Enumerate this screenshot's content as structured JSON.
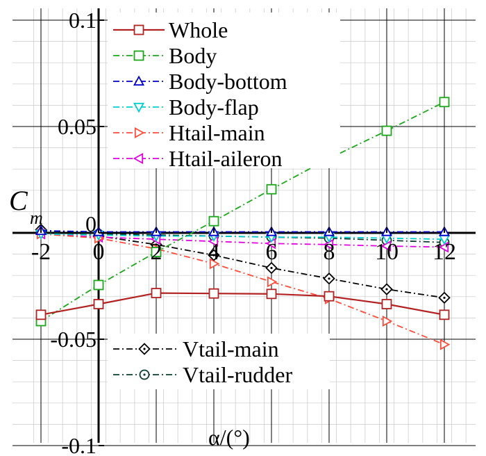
{
  "chart_data": {
    "type": "line",
    "title": "",
    "xlabel": "α/(°)",
    "ylabel": "C",
    "ylabel_subscript": "m",
    "xlim": [
      -2.25,
      13
    ],
    "ylim": [
      -0.1,
      0.1
    ],
    "x_ticks": [
      -2,
      0,
      2,
      4,
      6,
      8,
      10,
      12
    ],
    "x_tick_labels": [
      "-2",
      "0",
      "2",
      "4",
      "6",
      "8",
      "10",
      "12"
    ],
    "y_ticks": [
      -0.1,
      -0.05,
      0,
      0.05,
      0.1
    ],
    "y_tick_labels": [
      "-0.1",
      "-0.05",
      "0",
      "0.05",
      "0.1"
    ],
    "grid": true,
    "x": [
      -2,
      0,
      2,
      4,
      6,
      8,
      10,
      12
    ],
    "legend_upper": [
      "Whole",
      "Body",
      "Body-bottom",
      "Body-flap",
      "Htail-main",
      "Htail-aileron"
    ],
    "legend_lower": [
      "Vtail-main",
      "Vtail-rudder"
    ],
    "series": [
      {
        "name": "Whole",
        "color": "#b22222",
        "dash": "solid",
        "marker": "square",
        "values": [
          -0.0385,
          -0.0335,
          -0.0283,
          -0.0285,
          -0.0287,
          -0.0298,
          -0.0335,
          -0.0385
        ]
      },
      {
        "name": "Body",
        "color": "#1aa81a",
        "dash": "dashdot",
        "marker": "square",
        "values": [
          -0.0415,
          -0.0245,
          -0.009,
          0.0055,
          0.0205,
          0.035,
          0.048,
          0.0615
        ]
      },
      {
        "name": "Body-bottom",
        "color": "#0000cc",
        "dash": "dashdot",
        "marker": "triangle-up",
        "values": [
          0.001,
          0.0005,
          0.0005,
          0.0005,
          0.0005,
          0.0005,
          0.0005,
          0.0005
        ]
      },
      {
        "name": "Body-flap",
        "color": "#00d0d0",
        "dash": "dashdot",
        "marker": "triangle-down",
        "values": [
          -0.0005,
          -0.001,
          -0.0015,
          -0.0015,
          -0.002,
          -0.002,
          -0.0025,
          -0.003
        ]
      },
      {
        "name": "Htail-main",
        "color": "#ff4b3a",
        "dash": "dashdot",
        "marker": "triangle-right",
        "values": [
          -0.0005,
          -0.0025,
          -0.0075,
          -0.0145,
          -0.023,
          -0.031,
          -0.0415,
          -0.0525
        ]
      },
      {
        "name": "Htail-aileron",
        "color": "#e000e0",
        "dash": "dashdot",
        "marker": "triangle-left",
        "values": [
          -0.0005,
          -0.002,
          -0.003,
          -0.004,
          -0.005,
          -0.0055,
          -0.0062,
          -0.0067
        ]
      },
      {
        "name": "Vtail-main",
        "color": "#000000",
        "dash": "dashdot",
        "marker": "diamond",
        "values": [
          0.0015,
          -0.0015,
          -0.0055,
          -0.0105,
          -0.0165,
          -0.0215,
          -0.0265,
          -0.0305
        ]
      },
      {
        "name": "Vtail-rudder",
        "color": "#0b3d2e",
        "dash": "dashdot",
        "marker": "circle",
        "values": [
          0.0005,
          -0.0005,
          -0.001,
          -0.0015,
          -0.002,
          -0.0025,
          -0.0035,
          -0.0045
        ]
      }
    ]
  }
}
